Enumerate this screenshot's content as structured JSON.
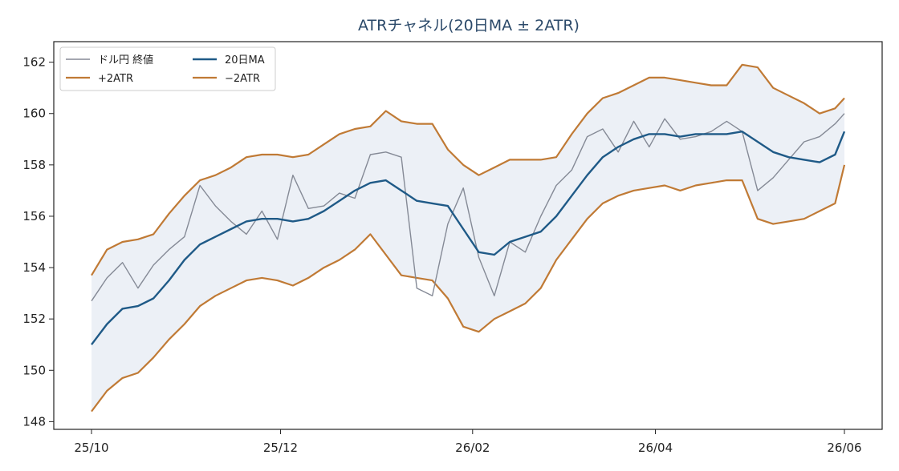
{
  "chart_data": {
    "type": "line",
    "title": "ATRチャネル(20日MA ± 2ATR)",
    "xlabel": "",
    "ylabel": "",
    "ylim": [
      147.7,
      162.8
    ],
    "yticks": [
      148,
      150,
      152,
      154,
      156,
      158,
      160,
      162
    ],
    "x_ticks": [
      {
        "label": "25/10",
        "date": "2025-10-01"
      },
      {
        "label": "25/12",
        "date": "2025-12-01"
      },
      {
        "label": "26/02",
        "date": "2026-02-01"
      },
      {
        "label": "26/04",
        "date": "2026-04-01"
      },
      {
        "label": "26/06",
        "date": "2026-06-01"
      }
    ],
    "x": [
      "2025-10-01",
      "2025-10-06",
      "2025-10-11",
      "2025-10-16",
      "2025-10-21",
      "2025-10-26",
      "2025-10-31",
      "2025-11-05",
      "2025-11-10",
      "2025-11-15",
      "2025-11-20",
      "2025-11-25",
      "2025-11-30",
      "2025-12-05",
      "2025-12-10",
      "2025-12-15",
      "2025-12-20",
      "2025-12-25",
      "2025-12-30",
      "2026-01-04",
      "2026-01-09",
      "2026-01-14",
      "2026-01-19",
      "2026-01-24",
      "2026-01-29",
      "2026-02-03",
      "2026-02-08",
      "2026-02-13",
      "2026-02-18",
      "2026-02-23",
      "2026-02-28",
      "2026-03-05",
      "2026-03-10",
      "2026-03-15",
      "2026-03-20",
      "2026-03-25",
      "2026-03-30",
      "2026-04-04",
      "2026-04-09",
      "2026-04-14",
      "2026-04-19",
      "2026-04-24",
      "2026-04-29",
      "2026-05-04",
      "2026-05-09",
      "2026-05-14",
      "2026-05-19",
      "2026-05-24",
      "2026-05-29",
      "2026-06-01"
    ],
    "series": [
      {
        "name": "ドル円 終値",
        "color": "#858a96",
        "values": [
          152.7,
          153.6,
          154.2,
          153.2,
          154.1,
          154.7,
          155.2,
          157.2,
          156.4,
          155.8,
          155.3,
          156.2,
          155.1,
          157.6,
          156.3,
          156.4,
          156.9,
          156.7,
          158.4,
          158.5,
          158.3,
          153.2,
          152.9,
          155.7,
          157.1,
          154.4,
          152.9,
          155.0,
          154.6,
          156.0,
          157.2,
          157.8,
          159.1,
          159.4,
          158.5,
          159.7,
          158.7,
          159.8,
          159.0,
          159.1,
          159.3,
          159.7,
          159.3,
          157.0,
          157.5,
          158.2,
          158.9,
          159.1,
          159.6,
          160.0
        ]
      },
      {
        "name": "20日MA",
        "color": "#1f5a87",
        "values": [
          151.0,
          151.8,
          152.4,
          152.5,
          152.8,
          153.5,
          154.3,
          154.9,
          155.2,
          155.5,
          155.8,
          155.9,
          155.9,
          155.8,
          155.9,
          156.2,
          156.6,
          157.0,
          157.3,
          157.4,
          157.0,
          156.6,
          156.5,
          156.4,
          155.5,
          154.6,
          154.5,
          155.0,
          155.2,
          155.4,
          156.0,
          156.8,
          157.6,
          158.3,
          158.7,
          159.0,
          159.2,
          159.2,
          159.1,
          159.2,
          159.2,
          159.2,
          159.3,
          158.9,
          158.5,
          158.3,
          158.2,
          158.1,
          158.4,
          159.3
        ]
      },
      {
        "name": "+2ATR",
        "color": "#c07a35",
        "values": [
          153.7,
          154.7,
          155.0,
          155.1,
          155.3,
          156.1,
          156.8,
          157.4,
          157.6,
          157.9,
          158.3,
          158.4,
          158.4,
          158.3,
          158.4,
          158.8,
          159.2,
          159.4,
          159.5,
          160.1,
          159.7,
          159.6,
          159.6,
          158.6,
          158.0,
          157.6,
          157.9,
          158.2,
          158.2,
          158.2,
          158.3,
          159.2,
          160.0,
          160.6,
          160.8,
          161.1,
          161.4,
          161.4,
          161.3,
          161.2,
          161.1,
          161.1,
          161.9,
          161.8,
          161.0,
          160.7,
          160.4,
          160.0,
          160.2,
          160.6
        ]
      },
      {
        "name": "−2ATR",
        "color": "#c07a35",
        "values": [
          148.4,
          149.2,
          149.7,
          149.9,
          150.5,
          151.2,
          151.8,
          152.5,
          152.9,
          153.2,
          153.5,
          153.6,
          153.5,
          153.3,
          153.6,
          154.0,
          154.3,
          154.7,
          155.3,
          154.5,
          153.7,
          153.6,
          153.5,
          152.8,
          151.7,
          151.5,
          152.0,
          152.3,
          152.6,
          153.2,
          154.3,
          155.1,
          155.9,
          156.5,
          156.8,
          157.0,
          157.1,
          157.2,
          157.0,
          157.2,
          157.3,
          157.4,
          157.4,
          155.9,
          155.7,
          155.8,
          155.9,
          156.2,
          156.5,
          158.0
        ]
      }
    ],
    "band": {
      "upper": "+2ATR",
      "lower": "−2ATR",
      "fill": "#dce4ee"
    },
    "legend": {
      "placement": "top-left",
      "columns": 2
    },
    "grid": false
  }
}
